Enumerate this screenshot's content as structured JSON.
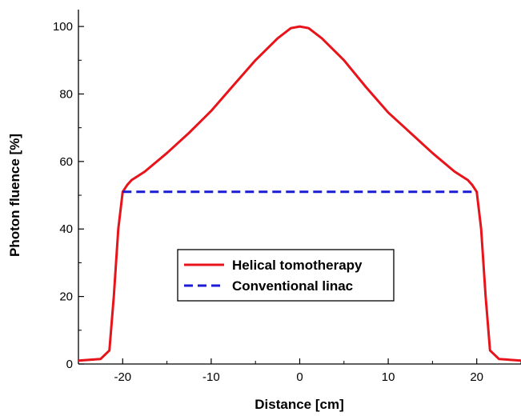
{
  "chart_data": {
    "type": "line",
    "title": "",
    "xlabel": "Distance [cm]",
    "ylabel": "Photon fluence [%]",
    "xlim": [
      -25,
      25
    ],
    "ylim": [
      0,
      105
    ],
    "x_ticks": [
      -20,
      -10,
      0,
      10,
      20
    ],
    "x_tick_labels": [
      "-20",
      "-10",
      "0",
      "10",
      "20"
    ],
    "y_ticks": [
      0,
      20,
      40,
      60,
      80,
      100
    ],
    "y_tick_labels": [
      "0",
      "20",
      "40",
      "60",
      "80",
      "100"
    ],
    "grid": false,
    "legend_position": "center-bottom",
    "series": [
      {
        "name": "Helical tomotherapy",
        "color": "#e8141b",
        "dash": "solid",
        "x": [
          -25,
          -22.5,
          -21.5,
          -21,
          -20.5,
          -20,
          -19.5,
          -19,
          -17.5,
          -15,
          -12.5,
          -10,
          -7.5,
          -5,
          -2.5,
          -1,
          0,
          1,
          2.5,
          5,
          7.5,
          10,
          12.5,
          15,
          17.5,
          19,
          19.5,
          20,
          20.5,
          21,
          21.5,
          22.5,
          25
        ],
        "y": [
          1,
          1.5,
          4,
          20,
          40,
          51,
          53,
          54.5,
          57,
          62.5,
          68.5,
          75,
          82.5,
          90,
          96.5,
          99.5,
          100,
          99.5,
          96.5,
          90,
          82,
          74.5,
          68.5,
          62.5,
          57,
          54.5,
          53,
          51,
          40,
          20,
          4,
          1.5,
          1
        ]
      },
      {
        "name": "Conventional linac",
        "color": "#1b1bd6",
        "dash": "dashed",
        "x": [
          -20,
          20
        ],
        "y": [
          51,
          51
        ]
      }
    ]
  }
}
